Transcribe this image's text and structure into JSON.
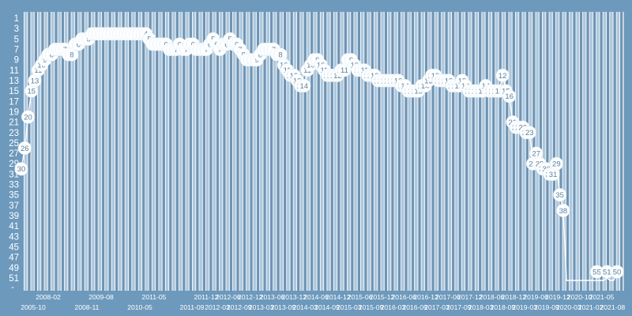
{
  "chart_data": {
    "type": "line",
    "title": "",
    "xlabel": "",
    "ylabel": "",
    "description": "Search-rank history: position (1 = best) over time; each point labeled with its rank inside a circular marker",
    "y_axis": {
      "ticks": [
        1,
        3,
        5,
        7,
        9,
        11,
        13,
        15,
        17,
        19,
        21,
        23,
        25,
        27,
        29,
        31,
        33,
        35,
        37,
        39,
        41,
        43,
        45,
        47,
        49,
        51
      ],
      "min": 1,
      "max": 51,
      "inverted": true,
      "overflow_dash": "-"
    },
    "x_labels": [
      "2005-10",
      "2008-02",
      "2008-11",
      "2009-08",
      "2010-05",
      "2011-05",
      "2011-09",
      "2011-12",
      "2012-03",
      "2012-06",
      "2012-09",
      "2012-12",
      "2013-03",
      "2013-06",
      "2013-09",
      "2013-12",
      "2014-03",
      "2014-06",
      "2014-09",
      "2014-12",
      "2015-03",
      "2015-06",
      "2015-09",
      "2015-12",
      "2016-03",
      "2016-06",
      "2016-09",
      "2016-12",
      "2017-03",
      "2017-06",
      "2017-09",
      "2017-12",
      "2018-03",
      "2018-06",
      "2018-09",
      "2018-12",
      "2019-03",
      "2019-06",
      "2019-09",
      "2019-12",
      "2020-03",
      "2020-10",
      "2021-02",
      "2021-05",
      "2021-08"
    ],
    "x_label_row_order": "first label bottom row, then alternating top/bottom",
    "values": [
      30,
      26,
      20,
      15,
      13,
      11,
      10,
      9,
      8,
      8,
      7,
      7,
      7,
      7,
      8,
      8,
      6,
      6,
      5,
      5,
      5,
      4,
      4,
      4,
      4,
      4,
      4,
      4,
      4,
      4,
      4,
      4,
      4,
      4,
      4,
      4,
      4,
      4,
      5,
      6,
      6,
      6,
      6,
      6,
      7,
      7,
      7,
      6,
      7,
      7,
      6,
      6,
      7,
      7,
      7,
      7,
      6,
      5,
      6,
      7,
      6,
      6,
      5,
      6,
      6,
      7,
      8,
      9,
      9,
      9,
      9,
      8,
      7,
      7,
      7,
      7,
      8,
      8,
      10,
      11,
      12,
      12,
      13,
      14,
      14,
      11,
      10,
      9,
      9,
      10,
      11,
      12,
      12,
      12,
      12,
      11,
      11,
      9,
      9,
      10,
      11,
      11,
      11,
      12,
      12,
      12,
      13,
      13,
      13,
      13,
      13,
      13,
      13,
      14,
      14,
      15,
      15,
      15,
      15,
      14,
      14,
      13,
      12,
      12,
      13,
      13,
      13,
      13,
      14,
      14,
      14,
      13,
      14,
      15,
      15,
      15,
      15,
      15,
      14,
      15,
      15,
      15,
      15,
      12,
      15,
      16,
      21,
      22,
      22,
      22,
      23,
      23,
      29,
      27,
      29,
      30,
      30,
      31,
      31,
      29,
      35,
      38,
      58,
      60,
      60,
      60,
      60,
      60,
      60,
      59,
      57,
      55,
      57,
      57,
      51,
      57,
      57,
      50
    ],
    "point_label_equals_value": true,
    "marker_hidden_above_rank": 55,
    "legend": "none",
    "grid": "vertical stripes, one column per measurement"
  },
  "colors": {
    "outer_background": "#6d99bc",
    "stripe_light": "#aec8dd",
    "stripe_dark": "#6e94b4",
    "stripe_separator": "#f6f9fc",
    "line": "#ffffff",
    "marker_fill": "#fdfeff",
    "marker_text": "#5a82a0",
    "axis_text": "#ffffff"
  }
}
